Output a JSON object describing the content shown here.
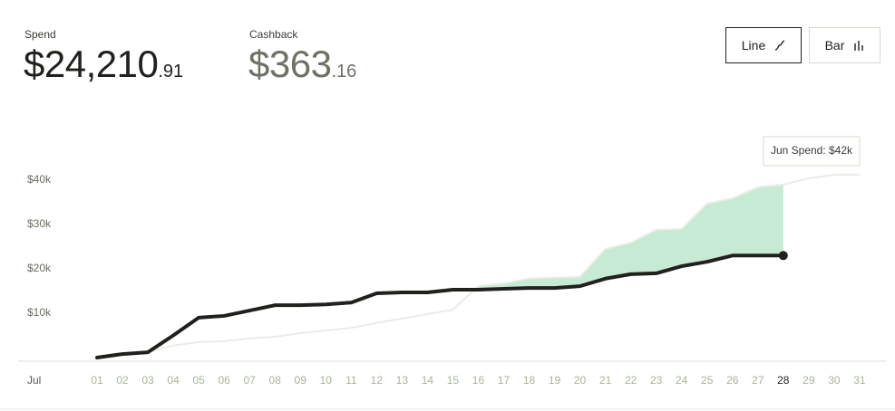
{
  "header": {
    "spend_label": "Spend",
    "spend_value": "$24,210",
    "spend_cents": ".91",
    "cashback_label": "Cashback",
    "cashback_value": "$363",
    "cashback_cents": ".16",
    "buttons": [
      "Line",
      "Bar"
    ]
  },
  "chart_data": {
    "type": "line",
    "x_label": "Jul",
    "annotation": "Jun Spend: $42k",
    "categories": [
      "01",
      "02",
      "03",
      "04",
      "05",
      "06",
      "07",
      "08",
      "09",
      "10",
      "11",
      "12",
      "13",
      "14",
      "15",
      "16",
      "17",
      "18",
      "19",
      "20",
      "21",
      "22",
      "23",
      "24",
      "25",
      "26",
      "27",
      "28",
      "29",
      "30",
      "31"
    ],
    "series": [
      {
        "color": "#1f211d",
        "values": [
          0,
          800,
          1200,
          5000,
          9000,
          9400,
          10600,
          11800,
          11800,
          12000,
          12400,
          14500,
          14700,
          14700,
          15300,
          15300,
          15500,
          15700,
          15700,
          16100,
          17800,
          18800,
          19000,
          20600,
          21600,
          23000,
          23000,
          23000,
          null,
          null,
          null
        ]
      },
      {
        "color": "#ecebe6",
        "values": [
          0,
          600,
          1200,
          2700,
          3500,
          3700,
          4300,
          4700,
          5500,
          6100,
          6700,
          7800,
          8800,
          9800,
          10800,
          16100,
          16700,
          17800,
          18000,
          18200,
          24500,
          25900,
          28800,
          29000,
          34700,
          35900,
          38400,
          39000,
          40400,
          41200,
          41200
        ]
      }
    ],
    "fill_color": "#c6ead3",
    "ylim": [
      0,
      45000
    ],
    "yticks": [
      {
        "value": 10000,
        "label": "$10k"
      },
      {
        "value": 20000,
        "label": "$20k"
      },
      {
        "value": 30000,
        "label": "$30k"
      },
      {
        "value": 40000,
        "label": "$40k"
      }
    ],
    "grid": false
  }
}
